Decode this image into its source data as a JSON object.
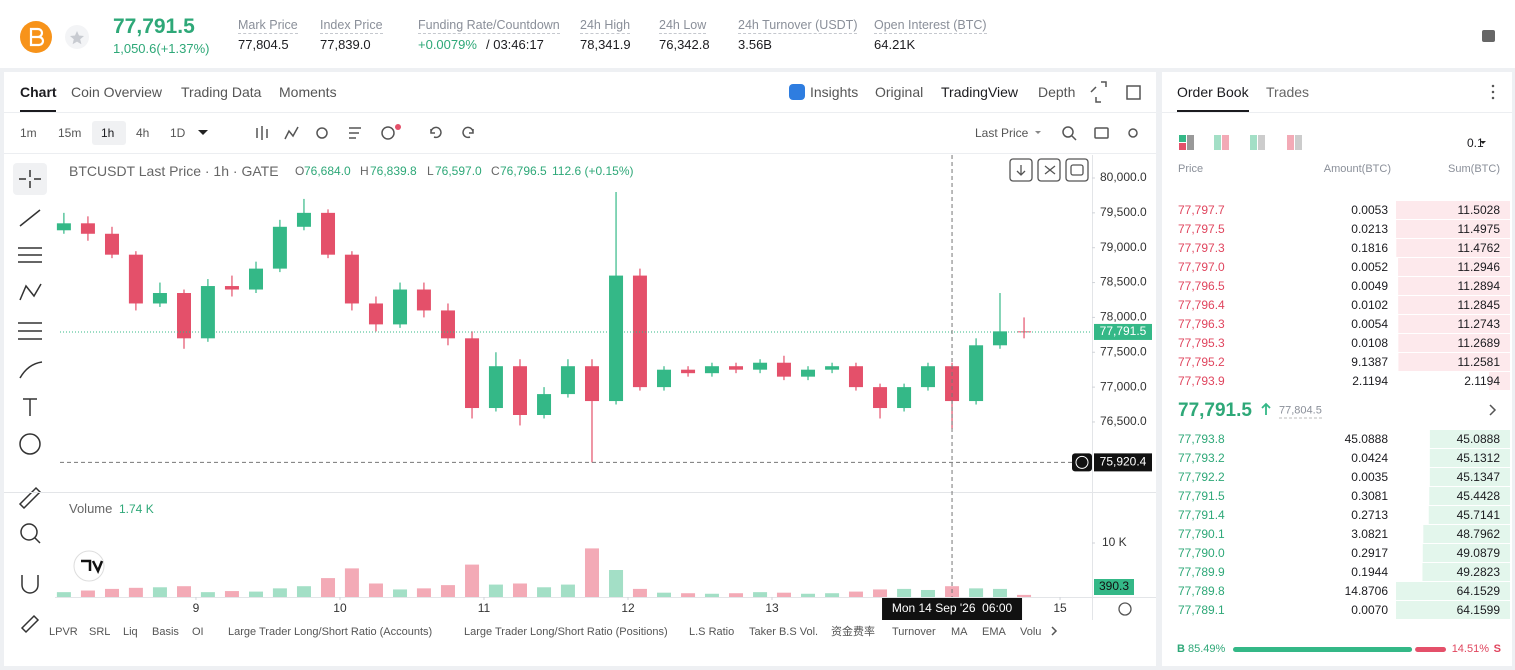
{
  "header": {
    "price": "77,791.5",
    "change": "1,050.6(+1.37%)",
    "stats": [
      {
        "label": "Mark Price",
        "value": "77,804.5"
      },
      {
        "label": "Index Price",
        "value": "77,839.0"
      },
      {
        "label": "Funding Rate/Countdown",
        "value": "+0.0079%",
        "extra": "/ 03:46:17"
      },
      {
        "label": "24h High",
        "value": "78,341.9"
      },
      {
        "label": "24h Low",
        "value": "76,342.8"
      },
      {
        "label": "24h Turnover (USDT)",
        "value": "3.56B"
      },
      {
        "label": "Open Interest (BTC)",
        "value": "64.21K"
      }
    ]
  },
  "chart_tabs": {
    "left": [
      "Chart",
      "Coin Overview",
      "Trading Data",
      "Moments"
    ],
    "right": [
      "Insights",
      "Original",
      "TradingView",
      "Depth"
    ]
  },
  "toolbar": {
    "intervals": [
      "1m",
      "15m",
      "1h",
      "4h",
      "1D"
    ],
    "price_type": "Last Price"
  },
  "chart_data": {
    "type": "candlestick",
    "legend": {
      "title": "BTCUSDT Last Price · 1h · GATE",
      "ohlc": [
        {
          "key": "O",
          "value": "76,684.0"
        },
        {
          "key": "H",
          "value": "76,839.8"
        },
        {
          "key": "L",
          "value": "76,597.0"
        },
        {
          "key": "C",
          "value": "76,796.5"
        }
      ],
      "change": "112.6 (+0.15%)"
    },
    "up_color": "#34b887",
    "down_color": "#e4506a",
    "volume_up_color": "#a3dfc6",
    "volume_down_color": "#f3aab6",
    "x": [
      8.083,
      8.25,
      8.417,
      8.583,
      8.75,
      8.917,
      9.083,
      9.25,
      9.417,
      9.583,
      9.75,
      9.917,
      10.083,
      10.25,
      10.417,
      10.583,
      10.75,
      10.917,
      11.083,
      11.25,
      11.417,
      11.583,
      11.75,
      11.917,
      12.083,
      12.25,
      12.417,
      12.583,
      12.75,
      12.917,
      13.083,
      13.25,
      13.417,
      13.583,
      13.75,
      13.917,
      14.083,
      14.25,
      14.417,
      14.583,
      14.75
    ],
    "open": [
      79250,
      79350,
      79200,
      78900,
      78200,
      78350,
      77700,
      78450,
      78400,
      78700,
      79300,
      79500,
      78900,
      78200,
      77900,
      78400,
      78100,
      77700,
      76700,
      77300,
      76600,
      76900,
      77300,
      76800,
      78600,
      77000,
      77250,
      77200,
      77300,
      77250,
      77350,
      77150,
      77250,
      77300,
      77000,
      76700,
      77000,
      77300,
      76800,
      77600,
      77800
    ],
    "high": [
      79500,
      79450,
      79300,
      78950,
      78500,
      78400,
      78550,
      78600,
      78800,
      79400,
      79700,
      79550,
      78950,
      78300,
      78500,
      78500,
      78200,
      77800,
      77500,
      77400,
      77000,
      77400,
      77400,
      79800,
      78700,
      77300,
      77300,
      77350,
      77350,
      77400,
      77450,
      77300,
      77350,
      77350,
      77050,
      77050,
      77350,
      77350,
      77700,
      78350,
      78000
    ],
    "low": [
      79200,
      79100,
      78850,
      78100,
      78150,
      77550,
      77650,
      78300,
      78350,
      78650,
      79250,
      78850,
      78100,
      77800,
      77850,
      78000,
      77600,
      76550,
      76650,
      76450,
      76550,
      76850,
      75920,
      76750,
      76950,
      76950,
      77150,
      77150,
      77200,
      77200,
      77100,
      77100,
      77200,
      76950,
      76550,
      76650,
      76950,
      76400,
      76750,
      77550,
      77700
    ],
    "close": [
      79350,
      79200,
      78900,
      78200,
      78350,
      77700,
      78450,
      78400,
      78700,
      79300,
      79500,
      78900,
      78200,
      77900,
      78400,
      78100,
      77700,
      76700,
      77300,
      76600,
      76900,
      77300,
      76800,
      78600,
      77000,
      77250,
      77200,
      77300,
      77250,
      77350,
      77150,
      77250,
      77300,
      77000,
      76700,
      77000,
      77300,
      76800,
      77600,
      77800,
      77791.5
    ],
    "volume": [
      900,
      1200,
      1500,
      1700,
      1800,
      2000,
      900,
      1100,
      1000,
      1600,
      2000,
      3500,
      5300,
      2500,
      1400,
      1600,
      2200,
      6000,
      2300,
      2500,
      1800,
      2300,
      9000,
      5000,
      1500,
      800,
      700,
      600,
      700,
      900,
      800,
      600,
      700,
      1000,
      1400,
      1500,
      1300,
      2000,
      1600,
      1500,
      390.3
    ],
    "xlim": [
      8.056,
      15.208
    ],
    "xticks": [
      9,
      10,
      11,
      12,
      13,
      15
    ],
    "ylim": [
      75524,
      80330
    ],
    "yticks": [
      {
        "value": 76500,
        "label": "76,500.0"
      },
      {
        "value": 77000,
        "label": "77,000.0"
      },
      {
        "value": 77500,
        "label": "77,500.0"
      },
      {
        "value": 78000,
        "label": "78,000.0"
      },
      {
        "value": 78500,
        "label": "78,500.0"
      },
      {
        "value": 79000,
        "label": "79,000.0"
      },
      {
        "value": 79500,
        "label": "79,500.0"
      },
      {
        "value": 80000,
        "label": "80,000.0"
      }
    ],
    "last_price": {
      "value": 77791.5,
      "label": "77,791.5"
    },
    "crosshair": {
      "x": 14.25,
      "time": "Mon 14 Sep '26  06:00",
      "price": {
        "value": 75920.4,
        "label": "75,920.4"
      }
    },
    "volume_title": "Volume",
    "volume_value": "1.74 K",
    "volume_ylim": [
      0,
      20000
    ],
    "volume_yticks": [
      {
        "value": 10000,
        "label": "10 K"
      }
    ]
  },
  "indicators": [
    "LPVR",
    "SRL",
    "Liq",
    "Basis",
    "OI",
    "Large Trader Long/Short Ratio (Accounts)",
    "Large Trader Long/Short Ratio (Positions)",
    "L.S Ratio",
    "Taker B.S Vol.",
    "资金费率",
    "Turnover",
    "MA",
    "EMA",
    "Volu"
  ],
  "order_book": {
    "tabs": [
      "Order Book",
      "Trades"
    ],
    "precision": "0.1",
    "columns": [
      "Price",
      "Amount(BTC)",
      "Sum(BTC)"
    ],
    "asks": [
      [
        "77,797.7",
        "0.0053",
        "11.5028"
      ],
      [
        "77,797.5",
        "0.0213",
        "11.4975"
      ],
      [
        "77,797.3",
        "0.1816",
        "11.4762"
      ],
      [
        "77,797.0",
        "0.0052",
        "11.2946"
      ],
      [
        "77,796.5",
        "0.0049",
        "11.2894"
      ],
      [
        "77,796.4",
        "0.0102",
        "11.2845"
      ],
      [
        "77,796.3",
        "0.0054",
        "11.2743"
      ],
      [
        "77,795.3",
        "0.0108",
        "11.2689"
      ],
      [
        "77,795.2",
        "9.1387",
        "11.2581"
      ],
      [
        "77,793.9",
        "2.1194",
        "2.1194"
      ]
    ],
    "mid_price": "77,791.5",
    "mark_price": "77,804.5",
    "bids": [
      [
        "77,793.8",
        "45.0888",
        "45.0888"
      ],
      [
        "77,793.2",
        "0.0424",
        "45.1312"
      ],
      [
        "77,792.2",
        "0.0035",
        "45.1347"
      ],
      [
        "77,791.5",
        "0.3081",
        "45.4428"
      ],
      [
        "77,791.4",
        "0.2713",
        "45.7141"
      ],
      [
        "77,790.1",
        "3.0821",
        "48.7962"
      ],
      [
        "77,790.0",
        "0.2917",
        "49.0879"
      ],
      [
        "77,789.9",
        "0.1944",
        "49.2823"
      ],
      [
        "77,789.8",
        "14.8706",
        "64.1529"
      ],
      [
        "77,789.1",
        "0.0070",
        "64.1599"
      ]
    ],
    "ratio": {
      "buy_key": "B",
      "buy": {
        "value": 85.49,
        "label": "85.49%"
      },
      "sell": {
        "value": 14.51,
        "label": "14.51%"
      },
      "sell_key": "S"
    }
  }
}
